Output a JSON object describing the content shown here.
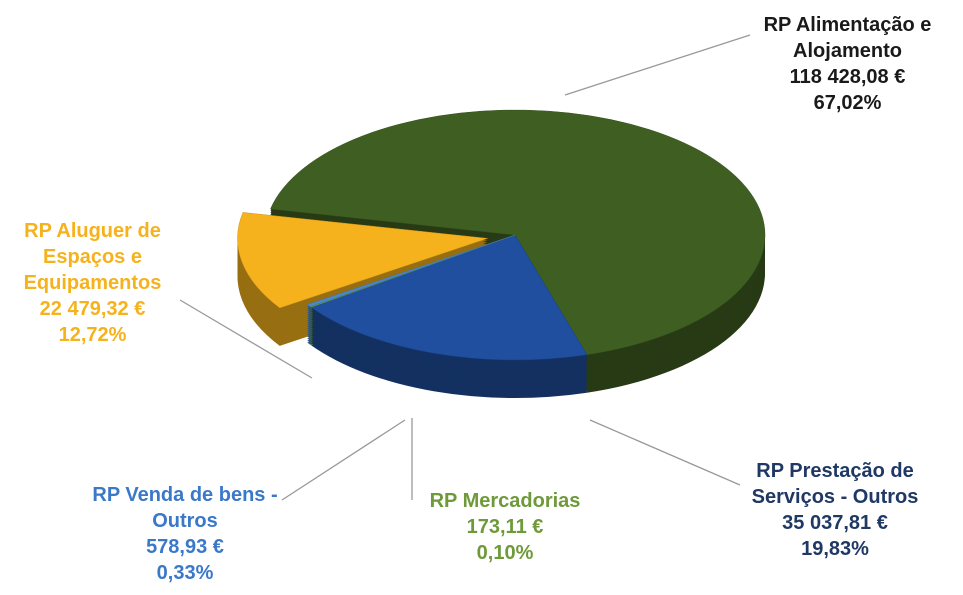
{
  "chart_data": {
    "type": "pie",
    "categories": [
      "RP Alimentação e Alojamento",
      "RP Prestação de Serviços - Outros",
      "RP Mercadorias",
      "RP Venda de bens - Outros",
      "RP Aluguer de Espaços e Equipamentos"
    ],
    "values": [
      67.02,
      19.83,
      0.1,
      0.33,
      12.72
    ],
    "value_labels": [
      "67,02%",
      "19,83%",
      "0,10%",
      "0,33%",
      "12,72%"
    ],
    "amounts": [
      118428.08,
      35037.81,
      173.11,
      578.93,
      22479.32
    ],
    "amount_labels": [
      "118 428,08 €",
      "35 037,81 €",
      "173,11 €",
      "578,93 €",
      "22 479,32 €"
    ],
    "colors": [
      "#3f5f22",
      "#1f4f9e",
      "#73a13c",
      "#4a88cc",
      "#f5b21c"
    ]
  }
}
